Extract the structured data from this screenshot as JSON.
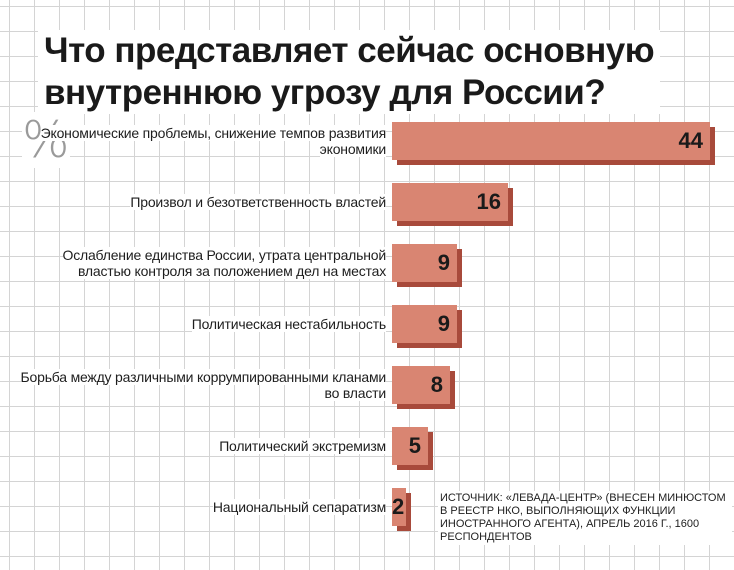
{
  "title_line1": "Что представляет сейчас основную",
  "title_line2": "внутреннюю угрозу для России?",
  "unit_symbol": "%",
  "source_note": "ИСТОЧНИК: «ЛЕВАДА-ЦЕНТР» (ВНЕСЕН МИНЮСТОМ В РЕЕСТР НКО, ВЫПОЛНЯЮЩИХ ФУНКЦИИ ИНОСТРАННОГО АГЕНТА), АПРЕЛЬ 2016 Г., 1600 РЕСПОНДЕНТОВ",
  "colors": {
    "bar": "#d98572",
    "bar_shadow": "#a84a3b",
    "grid": "#d4d4d4"
  },
  "chart_data": {
    "type": "bar",
    "orientation": "horizontal",
    "title": "Что представляет сейчас основную внутреннюю угрозу для России?",
    "categories": [
      "Экономические проблемы, снижение темпов развития экономики",
      "Произвол и безответственность властей",
      "Ослабление единства России, утрата центральной властью контроля за положением дел на местах",
      "Политическая нестабильность",
      "Борьба между различными коррумпированными кланами во власти",
      "Политический экстремизм",
      "Национальный сепаратизм"
    ],
    "values": [
      44,
      16,
      9,
      9,
      8,
      5,
      2
    ],
    "xlim": [
      0,
      44
    ],
    "grid": true
  }
}
